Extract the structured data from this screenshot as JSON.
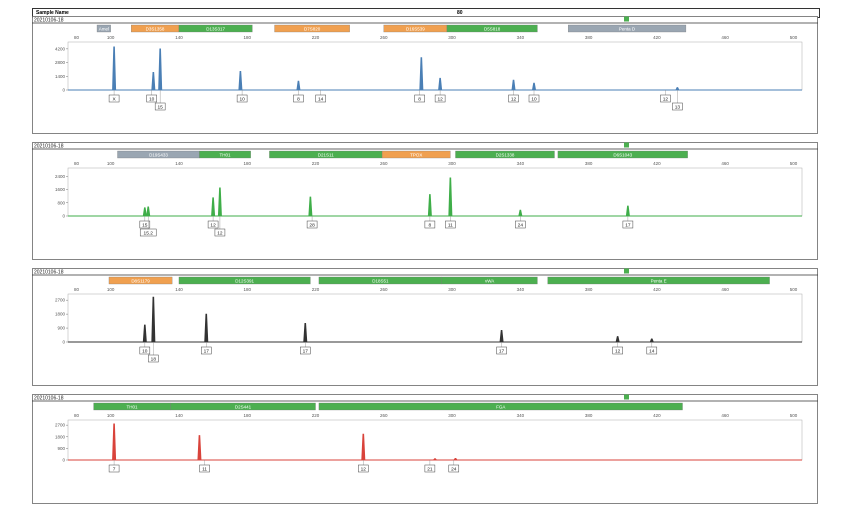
{
  "header": {
    "label": "Sample Name",
    "value": "80"
  },
  "panels_style": {
    "blue": "#4a7fb5",
    "green": "#3fae49",
    "black": "#333333",
    "red": "#d9433b",
    "marker_green": "#4caf50",
    "marker_orange": "#f0a050",
    "marker_gray": "#9aa6b2"
  },
  "chart_data": [
    {
      "type": "line",
      "sample": "20210106-18",
      "color": "blue",
      "xticks": [
        80,
        100,
        140,
        180,
        220,
        260,
        300,
        340,
        380,
        420,
        460,
        500
      ],
      "xlim": [
        75,
        505
      ],
      "yticks": [
        "4200",
        "2800",
        "1400",
        "0"
      ],
      "ylim": [
        0,
        4900
      ],
      "markers": [
        {
          "label": "Amel",
          "start": 92,
          "end": 100,
          "color": "gray"
        },
        {
          "label": "D3S1358",
          "start": 112,
          "end": 140,
          "color": "orange"
        },
        {
          "label": "D13S317",
          "start": 140,
          "end": 183,
          "color": "green"
        },
        {
          "label": "D7S820",
          "start": 196,
          "end": 240,
          "color": "orange"
        },
        {
          "label": "D16S539",
          "start": 260,
          "end": 297,
          "color": "orange"
        },
        {
          "label": "D5S818",
          "start": 297,
          "end": 350,
          "color": "green"
        },
        {
          "label": "Penta D",
          "start": 368,
          "end": 437,
          "color": "gray"
        }
      ],
      "peaks": [
        {
          "x": 102,
          "h": 4400
        },
        {
          "x": 125,
          "h": 1800
        },
        {
          "x": 129,
          "h": 4200
        },
        {
          "x": 176,
          "h": 1900
        },
        {
          "x": 210,
          "h": 900
        },
        {
          "x": 282,
          "h": 3300
        },
        {
          "x": 293,
          "h": 1200
        },
        {
          "x": 336,
          "h": 1000
        },
        {
          "x": 348,
          "h": 700
        },
        {
          "x": 432,
          "h": 250
        }
      ],
      "allele_labels": [
        {
          "x": 102,
          "text": "X",
          "row": 0
        },
        {
          "x": 124,
          "text": "10",
          "row": 0
        },
        {
          "x": 129,
          "text": "15",
          "row": 1
        },
        {
          "x": 177,
          "text": "10",
          "row": 0
        },
        {
          "x": 210,
          "text": "8",
          "row": 0
        },
        {
          "x": 223,
          "text": "14",
          "row": 0
        },
        {
          "x": 281,
          "text": "8",
          "row": 0
        },
        {
          "x": 293,
          "text": "12",
          "row": 0
        },
        {
          "x": 336,
          "text": "12",
          "row": 0
        },
        {
          "x": 348,
          "text": "10",
          "row": 0
        },
        {
          "x": 425,
          "text": "12",
          "row": 0
        },
        {
          "x": 432,
          "text": "13",
          "row": 1
        }
      ]
    },
    {
      "type": "line",
      "sample": "20210106-18",
      "color": "green",
      "xticks": [
        80,
        100,
        140,
        180,
        220,
        260,
        300,
        340,
        380,
        420,
        460,
        500
      ],
      "xlim": [
        75,
        505
      ],
      "yticks": [
        "2400",
        "1600",
        "800",
        "0"
      ],
      "ylim": [
        0,
        2900
      ],
      "markers": [
        {
          "label": "D19S433",
          "start": 104,
          "end": 152,
          "color": "gray"
        },
        {
          "label": "TH01",
          "start": 152,
          "end": 182,
          "color": "green"
        },
        {
          "label": "D21S11",
          "start": 193,
          "end": 259,
          "color": "green"
        },
        {
          "label": "TPOX",
          "start": 259,
          "end": 299,
          "color": "orange"
        },
        {
          "label": "D2S1338",
          "start": 302,
          "end": 360,
          "color": "green"
        },
        {
          "label": "D6S1043",
          "start": 362,
          "end": 438,
          "color": "green"
        }
      ],
      "peaks": [
        {
          "x": 120,
          "h": 500
        },
        {
          "x": 122,
          "h": 550
        },
        {
          "x": 160,
          "h": 1100
        },
        {
          "x": 164,
          "h": 1700
        },
        {
          "x": 217,
          "h": 1150
        },
        {
          "x": 287,
          "h": 1300
        },
        {
          "x": 299,
          "h": 2300
        },
        {
          "x": 340,
          "h": 350
        },
        {
          "x": 403,
          "h": 600
        }
      ],
      "allele_labels": [
        {
          "x": 120,
          "text": "15",
          "row": 0
        },
        {
          "x": 122,
          "text": "15.2",
          "row": 1
        },
        {
          "x": 160,
          "text": "12",
          "row": 0
        },
        {
          "x": 164,
          "text": "12",
          "row": 1
        },
        {
          "x": 218,
          "text": "28",
          "row": 0
        },
        {
          "x": 287,
          "text": "8",
          "row": 0
        },
        {
          "x": 299,
          "text": "11",
          "row": 0
        },
        {
          "x": 340,
          "text": "24",
          "row": 0
        },
        {
          "x": 403,
          "text": "17",
          "row": 0
        }
      ]
    },
    {
      "type": "line",
      "sample": "20210106-18",
      "color": "black",
      "xticks": [
        80,
        100,
        140,
        180,
        220,
        260,
        300,
        340,
        380,
        420,
        460,
        500
      ],
      "xlim": [
        75,
        505
      ],
      "yticks": [
        "2700",
        "1800",
        "900",
        "0"
      ],
      "ylim": [
        0,
        3100
      ],
      "markers": [
        {
          "label": "D8S1179",
          "start": 99,
          "end": 136,
          "color": "orange"
        },
        {
          "label": "D12S391",
          "start": 140,
          "end": 217,
          "color": "green"
        },
        {
          "label": "D18S51",
          "start": 222,
          "end": 294,
          "color": "green"
        },
        {
          "label": "vWA",
          "start": 294,
          "end": 350,
          "color": "green"
        },
        {
          "label": "Penta E",
          "start": 356,
          "end": 486,
          "color": "green"
        }
      ],
      "peaks": [
        {
          "x": 120,
          "h": 1100
        },
        {
          "x": 125,
          "h": 2900
        },
        {
          "x": 156,
          "h": 1800
        },
        {
          "x": 214,
          "h": 1200
        },
        {
          "x": 329,
          "h": 750
        },
        {
          "x": 397,
          "h": 350
        },
        {
          "x": 417,
          "h": 200
        }
      ],
      "allele_labels": [
        {
          "x": 120,
          "text": "10",
          "row": 0
        },
        {
          "x": 125,
          "text": "18",
          "row": 1
        },
        {
          "x": 156,
          "text": "17",
          "row": 0
        },
        {
          "x": 214,
          "text": "17",
          "row": 0
        },
        {
          "x": 329,
          "text": "17",
          "row": 0
        },
        {
          "x": 397,
          "text": "12",
          "row": 0
        },
        {
          "x": 417,
          "text": "14",
          "row": 0
        }
      ]
    },
    {
      "type": "line",
      "sample": "20210106-18",
      "color": "red",
      "xticks": [
        80,
        100,
        140,
        180,
        220,
        260,
        300,
        340,
        380,
        420,
        460,
        500
      ],
      "xlim": [
        75,
        505
      ],
      "yticks": [
        "2700",
        "1800",
        "900",
        "0"
      ],
      "ylim": [
        0,
        3100
      ],
      "markers": [
        {
          "label": "TH01",
          "start": 90,
          "end": 135,
          "color": "green"
        },
        {
          "label": "D2S441",
          "start": 135,
          "end": 220,
          "color": "green"
        },
        {
          "label": "FGA",
          "start": 222,
          "end": 435,
          "color": "green"
        }
      ],
      "peaks": [
        {
          "x": 102,
          "h": 2800
        },
        {
          "x": 152,
          "h": 1900
        },
        {
          "x": 248,
          "h": 2000
        },
        {
          "x": 290,
          "h": 100
        },
        {
          "x": 302,
          "h": 120
        }
      ],
      "allele_labels": [
        {
          "x": 102,
          "text": "7",
          "row": 0
        },
        {
          "x": 155,
          "text": "11",
          "row": 0
        },
        {
          "x": 248,
          "text": "12",
          "row": 0
        },
        {
          "x": 287,
          "text": "21",
          "row": 0
        },
        {
          "x": 301,
          "text": "24",
          "row": 0
        }
      ]
    }
  ]
}
